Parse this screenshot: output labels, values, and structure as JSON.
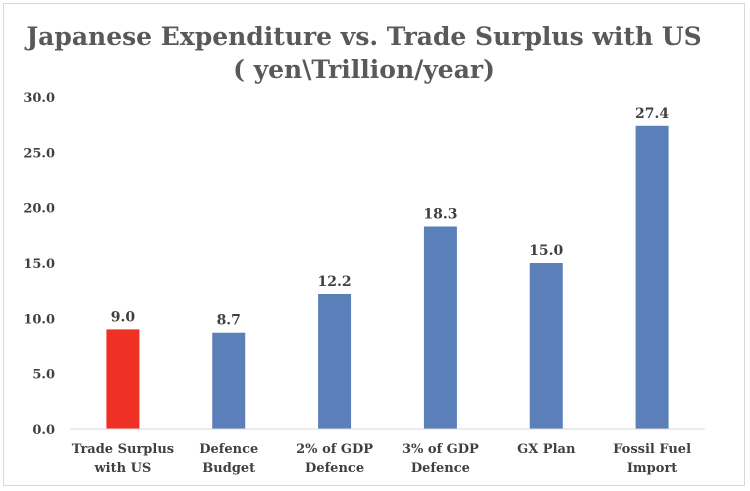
{
  "chart_data": {
    "type": "bar",
    "title": "Japanese Expenditure vs. Trade Surplus with US",
    "subtitle": "( yen\\Trillion/year)",
    "xlabel": "",
    "ylabel": "",
    "ylim": [
      0,
      30
    ],
    "yticks": [
      "0.0",
      "5.0",
      "10.0",
      "15.0",
      "20.0",
      "25.0",
      "30.0"
    ],
    "ytick_values": [
      0,
      5,
      10,
      15,
      20,
      25,
      30
    ],
    "grid": false,
    "legend": "none",
    "categories": [
      [
        "Trade Surplus",
        "with US"
      ],
      [
        "Defence",
        "Budget"
      ],
      [
        "2% of GDP",
        "Defence"
      ],
      [
        "3% of GDP",
        "Defence"
      ],
      [
        "GX Plan"
      ],
      [
        "Fossil Fuel",
        "Import"
      ]
    ],
    "values": [
      9.0,
      8.7,
      12.2,
      18.3,
      15.0,
      27.4
    ],
    "value_labels": [
      "9.0",
      "8.7",
      "12.2",
      "18.3",
      "15.0",
      "27.4"
    ],
    "colors": [
      "#ee3124",
      "#5b80b9",
      "#5b80b9",
      "#5b80b9",
      "#5b80b9",
      "#5b80b9"
    ]
  }
}
